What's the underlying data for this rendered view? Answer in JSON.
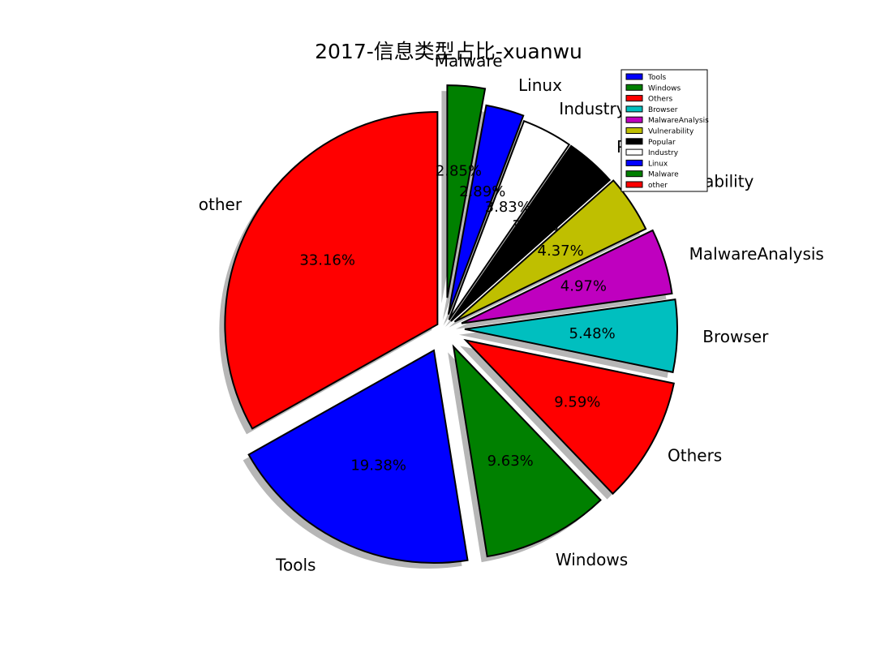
{
  "chart_data": {
    "type": "pie",
    "title": "2017-信息类型占比-xuanwu",
    "slices": [
      {
        "label": "other",
        "value": 33.16,
        "pct_label": "33.16%",
        "color": "#ff0000"
      },
      {
        "label": "Tools",
        "value": 19.38,
        "pct_label": "19.38%",
        "color": "#0000ff"
      },
      {
        "label": "Windows",
        "value": 9.63,
        "pct_label": "9.63%",
        "color": "#008000"
      },
      {
        "label": "Others",
        "value": 9.59,
        "pct_label": "9.59%",
        "color": "#ff0000"
      },
      {
        "label": "Browser",
        "value": 5.48,
        "pct_label": "5.48%",
        "color": "#00bfbf"
      },
      {
        "label": "MalwareAnalysis",
        "value": 4.97,
        "pct_label": "4.97%",
        "color": "#bf00bf"
      },
      {
        "label": "Vulnerability",
        "value": 4.37,
        "pct_label": "4.37%",
        "color": "#bfbf00"
      },
      {
        "label": "Popular",
        "value": 3.86,
        "pct_label": "3.86%",
        "color": "#000000"
      },
      {
        "label": "Industry",
        "value": 3.83,
        "pct_label": "3.83%",
        "color": "#ffffff"
      },
      {
        "label": "Linux",
        "value": 2.89,
        "pct_label": "2.89%",
        "color": "#0000ff"
      },
      {
        "label": "Malware",
        "value": 2.85,
        "pct_label": "2.85%",
        "color": "#008000"
      }
    ],
    "legend": {
      "placement": "top-right",
      "entries": [
        {
          "label": "Tools",
          "color": "#0000ff"
        },
        {
          "label": "Windows",
          "color": "#008000"
        },
        {
          "label": "Others",
          "color": "#ff0000"
        },
        {
          "label": "Browser",
          "color": "#00bfbf"
        },
        {
          "label": "MalwareAnalysis",
          "color": "#bf00bf"
        },
        {
          "label": "Vulnerability",
          "color": "#bfbf00"
        },
        {
          "label": "Popular",
          "color": "#000000"
        },
        {
          "label": "Industry",
          "color": "#ffffff"
        },
        {
          "label": "Linux",
          "color": "#0000ff"
        },
        {
          "label": "Malware",
          "color": "#008000"
        },
        {
          "label": "other",
          "color": "#ff0000"
        }
      ]
    },
    "exploded": true,
    "shadow": true
  }
}
